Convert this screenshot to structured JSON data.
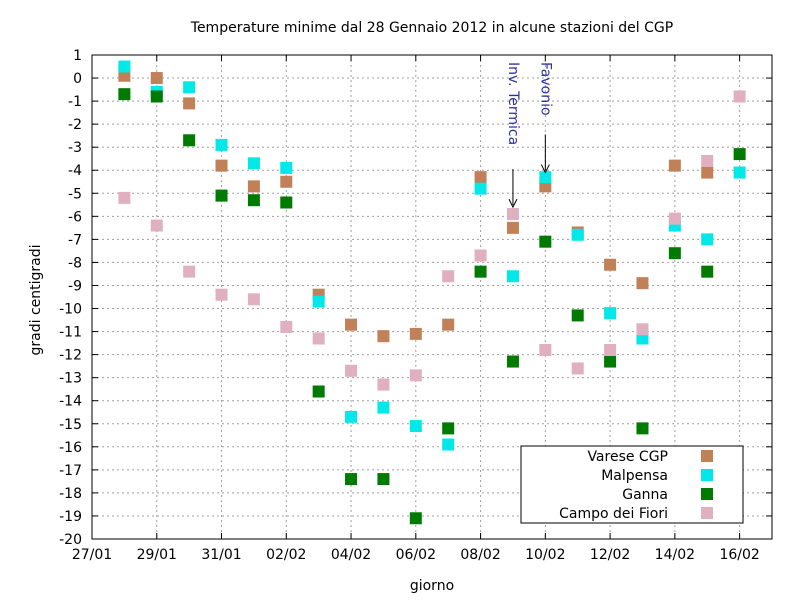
{
  "chart_data": {
    "type": "scatter",
    "title": "Temperature minime dal 28 Gennaio 2012 in alcune stazioni del CGP",
    "xlabel": "giorno",
    "ylabel": "gradi centigradi",
    "x_ticks": [
      "27/01",
      "29/01",
      "31/01",
      "02/02",
      "04/02",
      "06/02",
      "08/02",
      "10/02",
      "12/02",
      "14/02",
      "16/02"
    ],
    "x_range": [
      "27/01",
      "17/02"
    ],
    "ylim": [
      -20,
      1
    ],
    "y_ticks": [
      1,
      0,
      -1,
      -2,
      -3,
      -4,
      -5,
      -6,
      -7,
      -8,
      -9,
      -10,
      -11,
      -12,
      -13,
      -14,
      -15,
      -16,
      -17,
      -18,
      -19,
      -20
    ],
    "grid": true,
    "legend_position": "bottom-right",
    "series": [
      {
        "name": "Varese CGP",
        "color": "#c08058",
        "points": [
          {
            "x": "28/01",
            "y": 0.1
          },
          {
            "x": "29/01",
            "y": 0.0
          },
          {
            "x": "30/01",
            "y": -1.1
          },
          {
            "x": "31/01",
            "y": -3.8
          },
          {
            "x": "01/02",
            "y": -4.7
          },
          {
            "x": "02/02",
            "y": -4.5
          },
          {
            "x": "03/02",
            "y": -9.4
          },
          {
            "x": "04/02",
            "y": -10.7
          },
          {
            "x": "05/02",
            "y": -11.2
          },
          {
            "x": "06/02",
            "y": -11.1
          },
          {
            "x": "07/02",
            "y": -10.7
          },
          {
            "x": "08/02",
            "y": -4.3
          },
          {
            "x": "09/02",
            "y": -6.5
          },
          {
            "x": "10/02",
            "y": -4.7
          },
          {
            "x": "11/02",
            "y": -6.7
          },
          {
            "x": "12/02",
            "y": -8.1
          },
          {
            "x": "13/02",
            "y": -8.9
          },
          {
            "x": "14/02",
            "y": -3.8
          },
          {
            "x": "15/02",
            "y": -4.1
          }
        ]
      },
      {
        "name": "Malpensa",
        "color": "#00e8e8",
        "points": [
          {
            "x": "28/01",
            "y": 0.5
          },
          {
            "x": "29/01",
            "y": -0.6
          },
          {
            "x": "30/01",
            "y": -0.4
          },
          {
            "x": "31/01",
            "y": -2.9
          },
          {
            "x": "01/02",
            "y": -3.7
          },
          {
            "x": "02/02",
            "y": -3.9
          },
          {
            "x": "03/02",
            "y": -9.7
          },
          {
            "x": "04/02",
            "y": -14.7
          },
          {
            "x": "05/02",
            "y": -14.3
          },
          {
            "x": "06/02",
            "y": -15.1
          },
          {
            "x": "07/02",
            "y": -15.9
          },
          {
            "x": "08/02",
            "y": -4.8
          },
          {
            "x": "09/02",
            "y": -8.6
          },
          {
            "x": "10/02",
            "y": -4.3
          },
          {
            "x": "11/02",
            "y": -6.8
          },
          {
            "x": "12/02",
            "y": -10.2
          },
          {
            "x": "13/02",
            "y": -11.3
          },
          {
            "x": "14/02",
            "y": -6.4
          },
          {
            "x": "15/02",
            "y": -7.0
          },
          {
            "x": "16/02",
            "y": -4.1
          }
        ]
      },
      {
        "name": "Ganna",
        "color": "#007a00",
        "points": [
          {
            "x": "28/01",
            "y": -0.7
          },
          {
            "x": "29/01",
            "y": -0.8
          },
          {
            "x": "30/01",
            "y": -2.7
          },
          {
            "x": "31/01",
            "y": -5.1
          },
          {
            "x": "01/02",
            "y": -5.3
          },
          {
            "x": "02/02",
            "y": -5.4
          },
          {
            "x": "03/02",
            "y": -13.6
          },
          {
            "x": "04/02",
            "y": -17.4
          },
          {
            "x": "05/02",
            "y": -17.4
          },
          {
            "x": "06/02",
            "y": -19.1
          },
          {
            "x": "07/02",
            "y": -15.2
          },
          {
            "x": "08/02",
            "y": -8.4
          },
          {
            "x": "09/02",
            "y": -12.3
          },
          {
            "x": "10/02",
            "y": -7.1
          },
          {
            "x": "11/02",
            "y": -10.3
          },
          {
            "x": "12/02",
            "y": -12.3
          },
          {
            "x": "13/02",
            "y": -15.2
          },
          {
            "x": "14/02",
            "y": -7.6
          },
          {
            "x": "15/02",
            "y": -8.4
          },
          {
            "x": "16/02",
            "y": -3.3
          }
        ]
      },
      {
        "name": "Campo dei Fiori",
        "color": "#e0b0c0",
        "points": [
          {
            "x": "28/01",
            "y": -5.2
          },
          {
            "x": "29/01",
            "y": -6.4
          },
          {
            "x": "30/01",
            "y": -8.4
          },
          {
            "x": "31/01",
            "y": -9.4
          },
          {
            "x": "01/02",
            "y": -9.6
          },
          {
            "x": "02/02",
            "y": -10.8
          },
          {
            "x": "03/02",
            "y": -11.3
          },
          {
            "x": "04/02",
            "y": -12.7
          },
          {
            "x": "05/02",
            "y": -13.3
          },
          {
            "x": "06/02",
            "y": -12.9
          },
          {
            "x": "07/02",
            "y": -8.6
          },
          {
            "x": "08/02",
            "y": -7.7
          },
          {
            "x": "09/02",
            "y": -5.9
          },
          {
            "x": "10/02",
            "y": -11.8
          },
          {
            "x": "11/02",
            "y": -12.6
          },
          {
            "x": "12/02",
            "y": -11.8
          },
          {
            "x": "13/02",
            "y": -10.9
          },
          {
            "x": "14/02",
            "y": -6.1
          },
          {
            "x": "15/02",
            "y": -3.6
          },
          {
            "x": "16/02",
            "y": -0.8
          }
        ]
      }
    ],
    "annotations": [
      {
        "text": "Inv. Termica",
        "x": "09/02",
        "y": -5.6,
        "color": "#3030a0"
      },
      {
        "text": "Favonio",
        "x": "10/02",
        "y": -4.1,
        "color": "#3030a0"
      }
    ]
  }
}
